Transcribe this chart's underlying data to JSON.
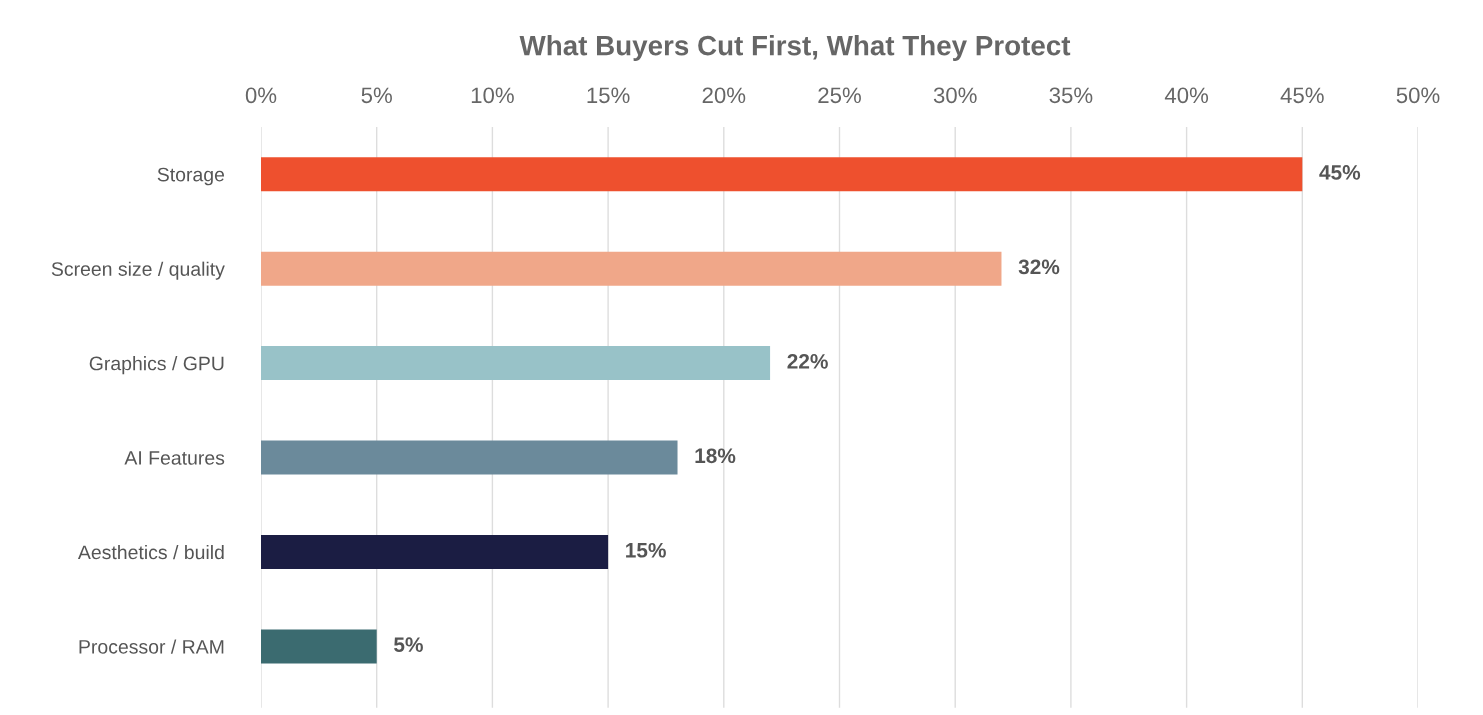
{
  "chart_data": {
    "type": "bar",
    "orientation": "horizontal",
    "title": "What Buyers Cut First, What They Protect",
    "categories": [
      "Storage",
      "Screen size / quality",
      "Graphics / GPU",
      "AI Features",
      "Aesthetics / build",
      "Processor / RAM"
    ],
    "values": [
      45,
      32,
      22,
      18,
      15,
      5
    ],
    "colors": [
      "#ee502e",
      "#f0a789",
      "#98c2c8",
      "#6b8a9b",
      "#1b1d43",
      "#3b6b70"
    ],
    "value_labels": [
      "45%",
      "32%",
      "22%",
      "18%",
      "15%",
      "5%"
    ],
    "xlim": [
      0,
      50
    ],
    "xticks": [
      {
        "value": 0,
        "label": "0%"
      },
      {
        "value": 5,
        "label": "5%"
      },
      {
        "value": 10,
        "label": "10%"
      },
      {
        "value": 15,
        "label": "15%"
      },
      {
        "value": 20,
        "label": "20%"
      },
      {
        "value": 25,
        "label": "25%"
      },
      {
        "value": 30,
        "label": "30%"
      },
      {
        "value": 35,
        "label": "35%"
      },
      {
        "value": 40,
        "label": "40%"
      },
      {
        "value": 45,
        "label": "45%"
      },
      {
        "value": 50,
        "label": "50%"
      }
    ],
    "grid": "x",
    "legend": false
  }
}
